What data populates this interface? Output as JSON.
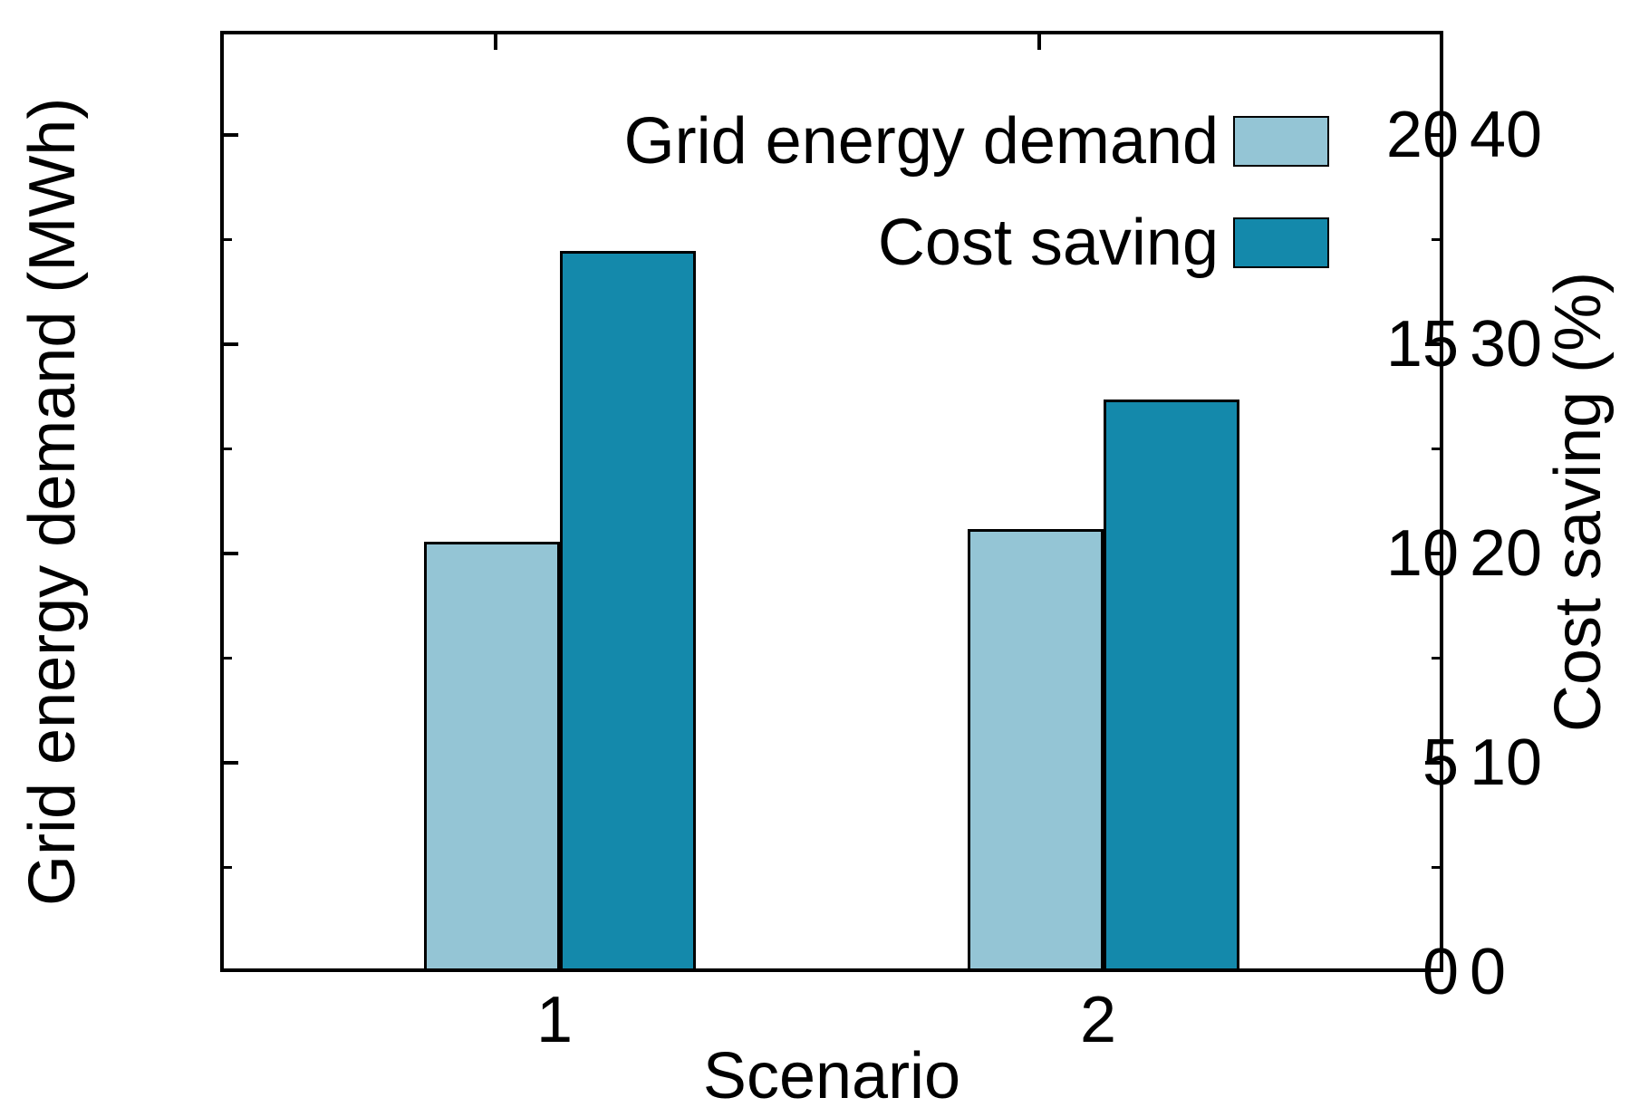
{
  "figure": {
    "background": "#ffffff"
  },
  "chart_data": {
    "type": "bar",
    "categories": [
      "1",
      "2"
    ],
    "xlabel": "Scenario",
    "series": [
      {
        "name": "Grid energy demand",
        "axis": "y1",
        "color": "#94C5D5",
        "values": [
          10.2,
          10.5
        ]
      },
      {
        "name": "Cost saving",
        "axis": "y2",
        "color": "#1489AB",
        "values": [
          34.3,
          27.2
        ]
      }
    ],
    "y1": {
      "label": "Grid energy demand (MWh)",
      "min": 0,
      "max": 22.5,
      "ticks": [
        0,
        5,
        10,
        15,
        20
      ],
      "minor_step": 2.5
    },
    "y2": {
      "label": "Cost saving (%)",
      "min": 0,
      "max": 45,
      "ticks": [
        0,
        10,
        20,
        30,
        40
      ],
      "minor_step": 5
    },
    "legend_position": "top-right",
    "grid": false,
    "bar_edge_color": "#000000"
  }
}
